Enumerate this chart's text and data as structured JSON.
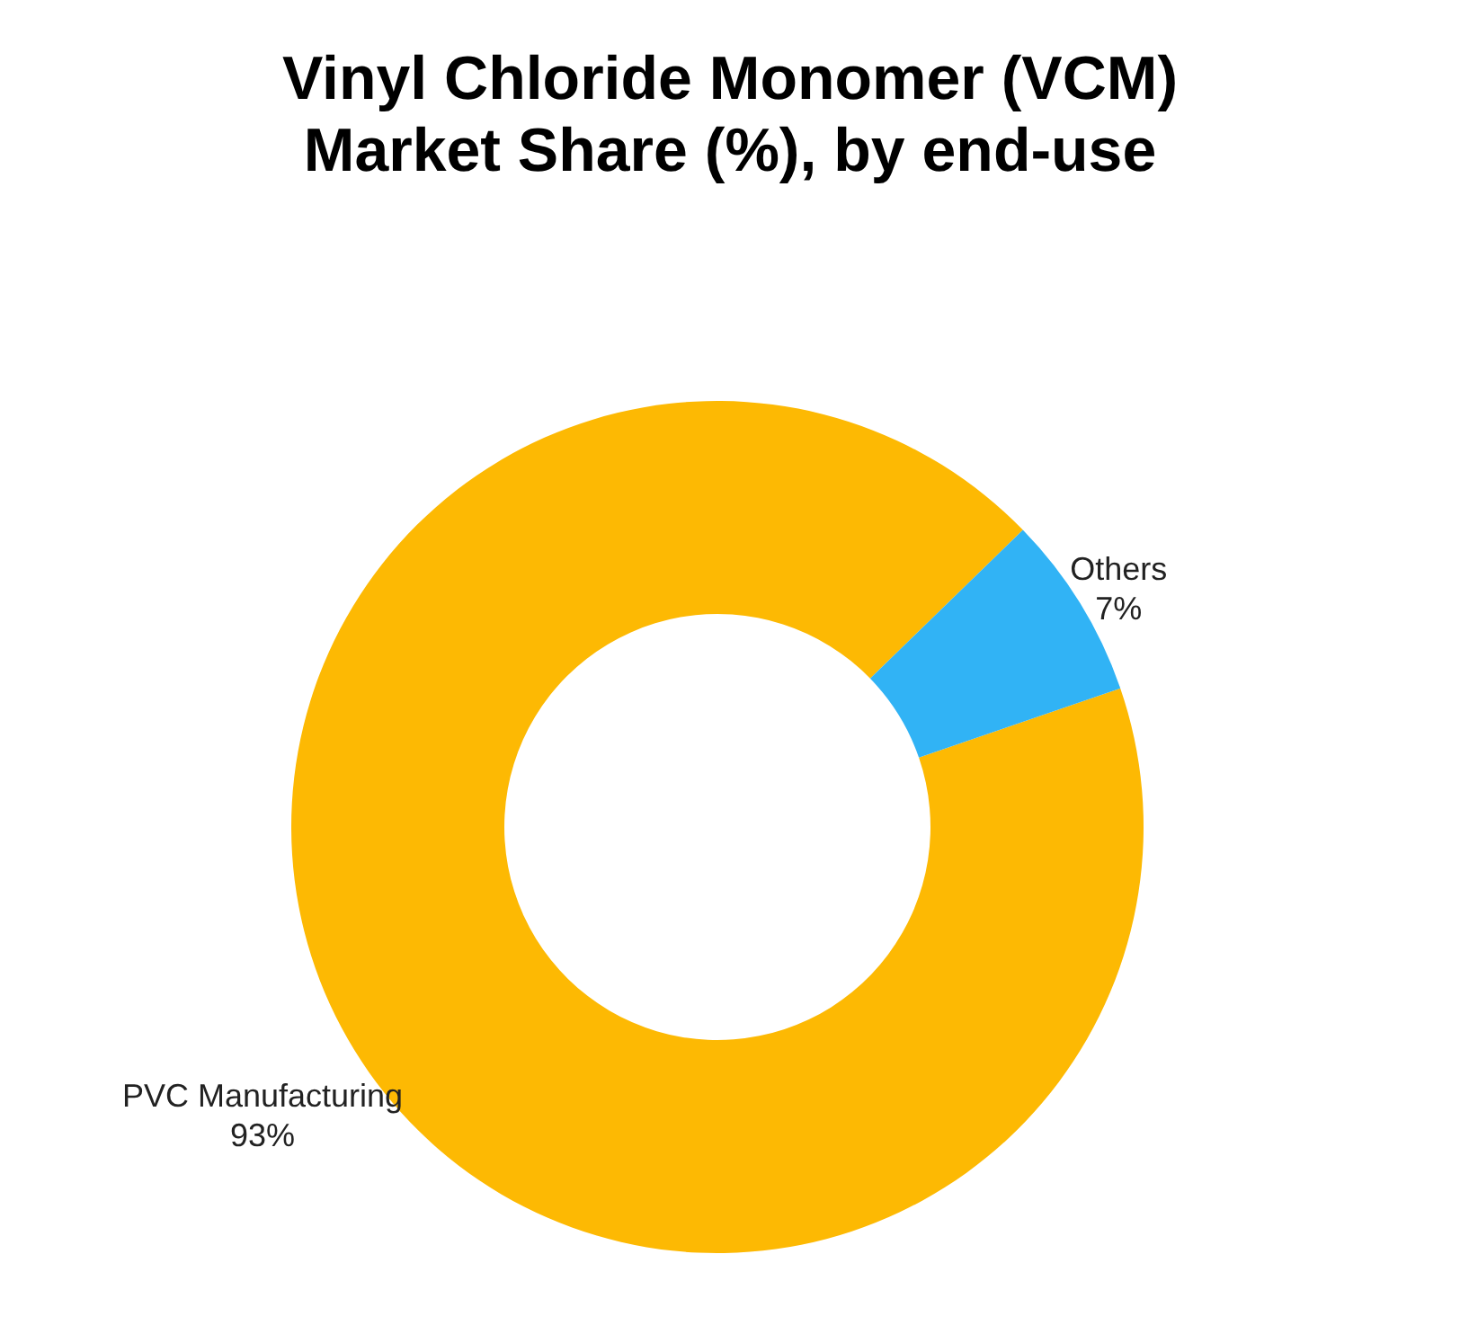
{
  "chart_data": {
    "type": "donut",
    "title": "Vinyl Chloride Monomer (VCM)\nMarket Share (%), by end-use",
    "categories": [
      "PVC Manufacturing",
      "Others"
    ],
    "values": [
      93,
      7
    ],
    "colors": [
      "#fdb903",
      "#31b3f5"
    ],
    "value_labels": [
      "93%",
      "7%"
    ]
  }
}
